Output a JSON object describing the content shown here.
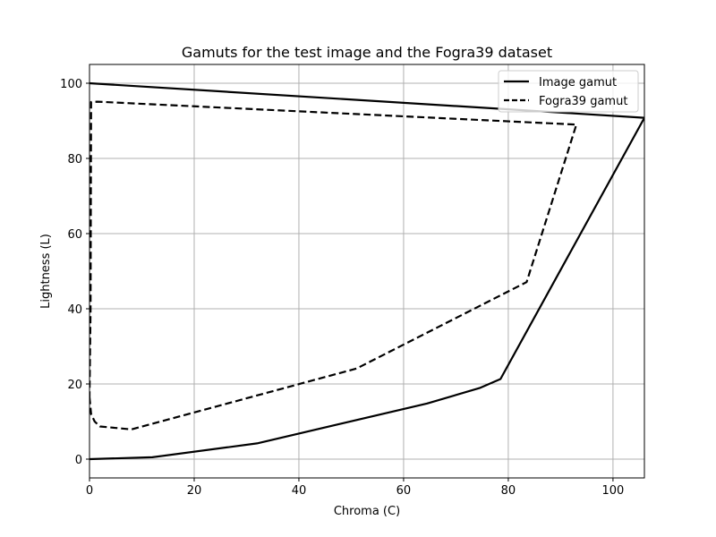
{
  "chart_data": {
    "type": "line",
    "title": "Gamuts for the test image and the Fogra39 dataset",
    "xlabel": "Chroma (C)",
    "ylabel": "Lightness (L)",
    "xlim": [
      0,
      106
    ],
    "ylim": [
      -5,
      105
    ],
    "xticks": [
      0,
      20,
      40,
      60,
      80,
      100
    ],
    "yticks": [
      0,
      20,
      40,
      60,
      80,
      100
    ],
    "grid": true,
    "legend_position": "top-right",
    "series": [
      {
        "name": "Image gamut",
        "style": "solid",
        "color": "#000000",
        "x": [
          0,
          12,
          32,
          64.5,
          74.5,
          78.5,
          106,
          0
        ],
        "y": [
          0,
          0.5,
          4.2,
          14.8,
          18.9,
          21.3,
          90.8,
          100
        ]
      },
      {
        "name": "Fogra39 gamut",
        "style": "dashed",
        "color": "#000000",
        "x": [
          0,
          0.3,
          1,
          2,
          8,
          51,
          83.5,
          93,
          1.5,
          0.3,
          0.2,
          0
        ],
        "y": [
          16.5,
          12,
          10,
          8.7,
          7.9,
          24.1,
          47.1,
          89,
          95.1,
          95,
          40,
          16.5
        ]
      }
    ]
  }
}
